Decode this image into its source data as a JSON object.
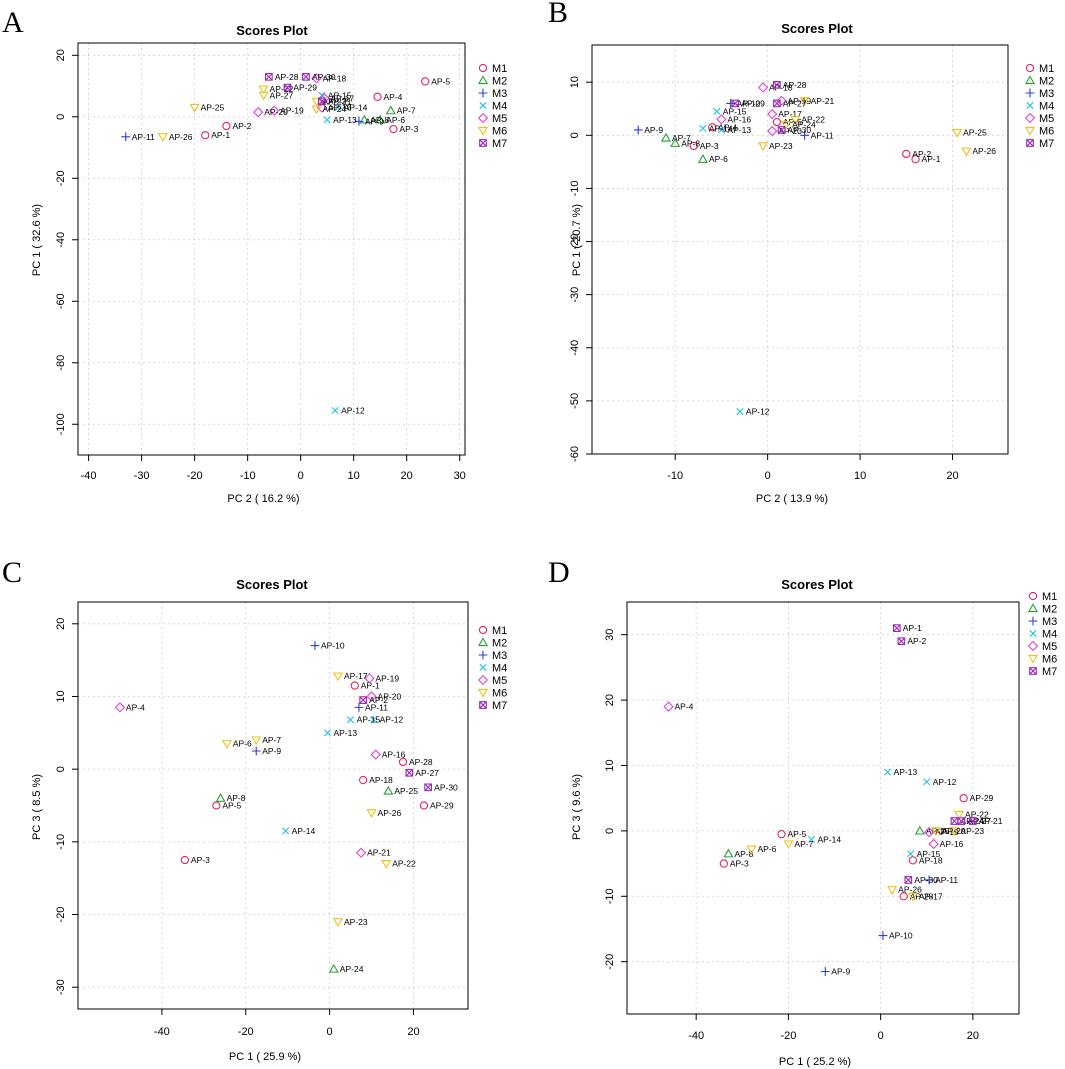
{
  "groups": [
    {
      "name": "M1",
      "shape": "circle",
      "color": "#e8245a"
    },
    {
      "name": "M2",
      "shape": "triangle",
      "color": "#2e9e3c"
    },
    {
      "name": "M3",
      "shape": "plus",
      "color": "#2a3fd6"
    },
    {
      "name": "M4",
      "shape": "x",
      "color": "#24c3df"
    },
    {
      "name": "M5",
      "shape": "diamond",
      "color": "#e43ee0"
    },
    {
      "name": "M6",
      "shape": "triangle-down",
      "color": "#eec21a"
    },
    {
      "name": "M7",
      "shape": "boxed-x",
      "color": "#9a27b8"
    }
  ],
  "chart_data": [
    {
      "panel": "A",
      "type": "scatter",
      "title": "Scores Plot",
      "xlabel": "PC 2 ( 16.2 %)",
      "ylabel": "PC 1 ( 32.6 %)",
      "xlim": [
        -42,
        31
      ],
      "ylim": [
        -110,
        24
      ],
      "xticks": [
        -40,
        -30,
        -20,
        -10,
        0,
        10,
        20,
        30
      ],
      "yticks": [
        20,
        0,
        -20,
        -40,
        -60,
        -80,
        -100
      ],
      "grid": true,
      "legend": "right",
      "points": [
        {
          "label": "AP-1",
          "group": "M1",
          "x": -18,
          "y": -6
        },
        {
          "label": "AP-2",
          "group": "M1",
          "x": -14,
          "y": -3
        },
        {
          "label": "AP-3",
          "group": "M1",
          "x": 17.5,
          "y": -4
        },
        {
          "label": "AP-4",
          "group": "M1",
          "x": 14.5,
          "y": 6.5
        },
        {
          "label": "AP-5",
          "group": "M1",
          "x": 23.5,
          "y": 11.5
        },
        {
          "label": "AP-6",
          "group": "M2",
          "x": 15,
          "y": -1
        },
        {
          "label": "AP-7",
          "group": "M2",
          "x": 17,
          "y": 2
        },
        {
          "label": "AP-8",
          "group": "M2",
          "x": 12,
          "y": -1
        },
        {
          "label": "AP-11",
          "group": "M3",
          "x": -33,
          "y": -6.5
        },
        {
          "label": "AP-9",
          "group": "M3",
          "x": 11,
          "y": -1.5
        },
        {
          "label": "AP-12",
          "group": "M4",
          "x": 6.5,
          "y": -95.5
        },
        {
          "label": "AP-13",
          "group": "M4",
          "x": 5,
          "y": -1
        },
        {
          "label": "AP-14",
          "group": "M4",
          "x": 7,
          "y": 3
        },
        {
          "label": "AP-15",
          "group": "M4",
          "x": 4,
          "y": 7
        },
        {
          "label": "AP-19",
          "group": "M5",
          "x": -5,
          "y": 2
        },
        {
          "label": "AP-20",
          "group": "M5",
          "x": -8,
          "y": 1.5
        },
        {
          "label": "AP-16",
          "group": "M5",
          "x": 4,
          "y": 3
        },
        {
          "label": "AP-17",
          "group": "M5",
          "x": 4.5,
          "y": 6
        },
        {
          "label": "AP-18",
          "group": "M5",
          "x": 3,
          "y": 12.5
        },
        {
          "label": "AP-25",
          "group": "M6",
          "x": -20,
          "y": 3
        },
        {
          "label": "AP-26",
          "group": "M6",
          "x": -26,
          "y": -6.5
        },
        {
          "label": "AP-22",
          "group": "M6",
          "x": -7,
          "y": 9
        },
        {
          "label": "AP-27",
          "group": "M6",
          "x": -7,
          "y": 7
        },
        {
          "label": "AP-23",
          "group": "M6",
          "x": 3,
          "y": 5
        },
        {
          "label": "AP-24",
          "group": "M6",
          "x": 3,
          "y": 2.5
        },
        {
          "label": "AP-28",
          "group": "M7",
          "x": -6,
          "y": 13
        },
        {
          "label": "AP-29",
          "group": "M7",
          "x": -2.5,
          "y": 9.5
        },
        {
          "label": "AP-30",
          "group": "M7",
          "x": 1,
          "y": 13
        },
        {
          "label": "AP-21",
          "group": "M7",
          "x": 4,
          "y": 5
        }
      ]
    },
    {
      "panel": "B",
      "type": "scatter",
      "title": "Scores Plot",
      "xlabel": "PC 2 ( 13.9 %)",
      "ylabel": "PC 1 ( 20.7 %)",
      "xlim": [
        -19,
        26
      ],
      "ylim": [
        -60,
        17
      ],
      "xticks": [
        -10,
        0,
        10,
        20
      ],
      "yticks": [
        10,
        0,
        -10,
        -20,
        -30,
        -40,
        -50,
        -60
      ],
      "grid": true,
      "legend": "right",
      "points": [
        {
          "label": "AP-1",
          "group": "M1",
          "x": 16,
          "y": -4.5
        },
        {
          "label": "AP-2",
          "group": "M1",
          "x": 15,
          "y": -3.5
        },
        {
          "label": "AP-3",
          "group": "M1",
          "x": -8,
          "y": -2
        },
        {
          "label": "AP-4",
          "group": "M1",
          "x": -6,
          "y": 1.5
        },
        {
          "label": "AP-5",
          "group": "M1",
          "x": 1,
          "y": 2.5
        },
        {
          "label": "AP-6",
          "group": "M2",
          "x": -7,
          "y": -4.5
        },
        {
          "label": "AP-7",
          "group": "M2",
          "x": -11,
          "y": -0.5
        },
        {
          "label": "AP-8",
          "group": "M2",
          "x": -10,
          "y": -1.5
        },
        {
          "label": "AP-9",
          "group": "M3",
          "x": -14,
          "y": 1
        },
        {
          "label": "AP-10",
          "group": "M3",
          "x": -4,
          "y": 6
        },
        {
          "label": "AP-11",
          "group": "M3",
          "x": 4,
          "y": 0
        },
        {
          "label": "AP-12",
          "group": "M4",
          "x": -3,
          "y": -52
        },
        {
          "label": "AP-13",
          "group": "M4",
          "x": -5,
          "y": 1
        },
        {
          "label": "AP-14",
          "group": "M4",
          "x": -7,
          "y": 1.3
        },
        {
          "label": "AP-15",
          "group": "M4",
          "x": -5.5,
          "y": 4.5
        },
        {
          "label": "AP-16",
          "group": "M5",
          "x": -5,
          "y": 3
        },
        {
          "label": "AP-17",
          "group": "M5",
          "x": 0.5,
          "y": 4
        },
        {
          "label": "AP-18",
          "group": "M5",
          "x": -0.5,
          "y": 9
        },
        {
          "label": "AP-19",
          "group": "M5",
          "x": 1.5,
          "y": 6.5
        },
        {
          "label": "AP-20",
          "group": "M5",
          "x": 0.5,
          "y": 0.8
        },
        {
          "label": "AP-21",
          "group": "M6",
          "x": 4,
          "y": 6.5
        },
        {
          "label": "AP-22",
          "group": "M6",
          "x": 3,
          "y": 3
        },
        {
          "label": "AP-23",
          "group": "M6",
          "x": -0.5,
          "y": -2
        },
        {
          "label": "AP-24",
          "group": "M6",
          "x": 2,
          "y": 2
        },
        {
          "label": "AP-25",
          "group": "M6",
          "x": 20.5,
          "y": 0.5
        },
        {
          "label": "AP-26",
          "group": "M6",
          "x": 21.5,
          "y": -3
        },
        {
          "label": "AP-27",
          "group": "M7",
          "x": 1,
          "y": 6
        },
        {
          "label": "AP-28",
          "group": "M7",
          "x": 1,
          "y": 9.5
        },
        {
          "label": "AP-29",
          "group": "M7",
          "x": -3.5,
          "y": 6
        },
        {
          "label": "AP-30",
          "group": "M7",
          "x": 1.5,
          "y": 1.0
        }
      ]
    },
    {
      "panel": "C",
      "type": "scatter",
      "title": "Scores Plot",
      "xlabel": "PC 1 ( 25.9 %)",
      "ylabel": "PC 3 ( 8.5 %)",
      "xlim": [
        -60,
        33
      ],
      "ylim": [
        -33,
        23
      ],
      "xticks": [
        -40,
        -20,
        0,
        20
      ],
      "yticks": [
        20,
        10,
        0,
        -10,
        -20,
        -30
      ],
      "grid": true,
      "legend": "right",
      "points": [
        {
          "label": "AP-1",
          "group": "M1",
          "x": 6,
          "y": 11.5
        },
        {
          "label": "AP-3",
          "group": "M1",
          "x": -34.5,
          "y": -12.5
        },
        {
          "label": "AP-5",
          "group": "M1",
          "x": -27,
          "y": -5
        },
        {
          "label": "AP-18",
          "group": "M1",
          "x": 8,
          "y": -1.5
        },
        {
          "label": "AP-28",
          "group": "M1",
          "x": 17.5,
          "y": 1
        },
        {
          "label": "AP-29",
          "group": "M1",
          "x": 22.5,
          "y": -5
        },
        {
          "label": "AP-8",
          "group": "M2",
          "x": -26,
          "y": -4
        },
        {
          "label": "AP-25",
          "group": "M2",
          "x": 14,
          "y": -3
        },
        {
          "label": "AP-24",
          "group": "M2",
          "x": 1,
          "y": -27.5
        },
        {
          "label": "AP-10",
          "group": "M3",
          "x": -3.5,
          "y": 17
        },
        {
          "label": "AP-11",
          "group": "M3",
          "x": 7,
          "y": 8.5
        },
        {
          "label": "AP-9",
          "group": "M3",
          "x": -17.5,
          "y": 2.5
        },
        {
          "label": "AP-12",
          "group": "M4",
          "x": 10.5,
          "y": 6.8
        },
        {
          "label": "AP-13",
          "group": "M4",
          "x": -0.5,
          "y": 5
        },
        {
          "label": "AP-14",
          "group": "M4",
          "x": -10.5,
          "y": -8.5
        },
        {
          "label": "AP-15",
          "group": "M4",
          "x": 5,
          "y": 6.8
        },
        {
          "label": "AP-4",
          "group": "M5",
          "x": -50,
          "y": 8.5
        },
        {
          "label": "AP-19",
          "group": "M5",
          "x": 9.5,
          "y": 12.5
        },
        {
          "label": "AP-20",
          "group": "M5",
          "x": 10,
          "y": 10
        },
        {
          "label": "AP-16",
          "group": "M5",
          "x": 11,
          "y": 2
        },
        {
          "label": "AP-21",
          "group": "M5",
          "x": 7.5,
          "y": -11.5
        },
        {
          "label": "AP-17",
          "group": "M6",
          "x": 2,
          "y": 12.8
        },
        {
          "label": "AP-7",
          "group": "M6",
          "x": -17.5,
          "y": 4
        },
        {
          "label": "AP-6",
          "group": "M6",
          "x": -24.5,
          "y": 3.5
        },
        {
          "label": "AP-26",
          "group": "M6",
          "x": 10,
          "y": -6
        },
        {
          "label": "AP-22",
          "group": "M6",
          "x": 13.5,
          "y": -13
        },
        {
          "label": "AP-23",
          "group": "M6",
          "x": 2,
          "y": -21
        },
        {
          "label": "AP-2",
          "group": "M7",
          "x": 8,
          "y": 9.5
        },
        {
          "label": "AP-27",
          "group": "M7",
          "x": 19,
          "y": -0.5
        },
        {
          "label": "AP-30",
          "group": "M7",
          "x": 23.5,
          "y": -2.5
        }
      ]
    },
    {
      "panel": "D",
      "type": "scatter",
      "title": "Scores Plot",
      "xlabel": "PC 1 ( 25.2 %)",
      "ylabel": "PC 3 ( 9.6 %)",
      "xlim": [
        -55,
        30
      ],
      "ylim": [
        -28,
        35
      ],
      "xticks": [
        -40,
        -20,
        0,
        20
      ],
      "yticks": [
        30,
        20,
        10,
        0,
        -10,
        -20
      ],
      "grid": true,
      "legend": "right",
      "points": [
        {
          "label": "AP-3",
          "group": "M1",
          "x": -34,
          "y": -5
        },
        {
          "label": "AP-5",
          "group": "M1",
          "x": -21.5,
          "y": -0.5
        },
        {
          "label": "AP-18",
          "group": "M1",
          "x": 7,
          "y": -4.5
        },
        {
          "label": "AP-29",
          "group": "M1",
          "x": 18,
          "y": 5
        },
        {
          "label": "AP-28",
          "group": "M1",
          "x": 5,
          "y": -10
        },
        {
          "label": "AP-8",
          "group": "M2",
          "x": -33,
          "y": -3.5
        },
        {
          "label": "AP-25",
          "group": "M2",
          "x": 8.5,
          "y": 0
        },
        {
          "label": "AP-9",
          "group": "M3",
          "x": -12,
          "y": -21.5
        },
        {
          "label": "AP-10",
          "group": "M3",
          "x": 0.5,
          "y": -16
        },
        {
          "label": "AP-11",
          "group": "M3",
          "x": 10.5,
          "y": -7.5
        },
        {
          "label": "AP-13",
          "group": "M4",
          "x": 1.5,
          "y": 9
        },
        {
          "label": "AP-12",
          "group": "M4",
          "x": 10,
          "y": 7.5
        },
        {
          "label": "AP-14",
          "group": "M4",
          "x": -15,
          "y": -1.3
        },
        {
          "label": "AP-15",
          "group": "M4",
          "x": 6.5,
          "y": -3.5
        },
        {
          "label": "AP-4",
          "group": "M5",
          "x": -46,
          "y": 19
        },
        {
          "label": "AP-16",
          "group": "M5",
          "x": 11.5,
          "y": -2
        },
        {
          "label": "AP-19",
          "group": "M5",
          "x": 10.5,
          "y": -0.2
        },
        {
          "label": "AP-6",
          "group": "M6",
          "x": -28,
          "y": -2.8
        },
        {
          "label": "AP-7",
          "group": "M6",
          "x": -20,
          "y": -2
        },
        {
          "label": "AP-26",
          "group": "M6",
          "x": 2.5,
          "y": -9
        },
        {
          "label": "AP-17",
          "group": "M6",
          "x": 7,
          "y": -10
        },
        {
          "label": "AP-22",
          "group": "M6",
          "x": 17,
          "y": 2.5
        },
        {
          "label": "AP-23",
          "group": "M6",
          "x": 16,
          "y": 0
        },
        {
          "label": "AP-20",
          "group": "M6",
          "x": 12,
          "y": 0
        },
        {
          "label": "AP-1",
          "group": "M7",
          "x": 3.5,
          "y": 31
        },
        {
          "label": "AP-2",
          "group": "M7",
          "x": 4.5,
          "y": 29
        },
        {
          "label": "AP-30",
          "group": "M7",
          "x": 6,
          "y": -7.5
        },
        {
          "label": "AP-24",
          "group": "M7",
          "x": 16,
          "y": 1.5
        },
        {
          "label": "AP-27",
          "group": "M7",
          "x": 17.5,
          "y": 1.5
        },
        {
          "label": "AP-21",
          "group": "M7",
          "x": 20,
          "y": 1.5
        }
      ]
    }
  ]
}
